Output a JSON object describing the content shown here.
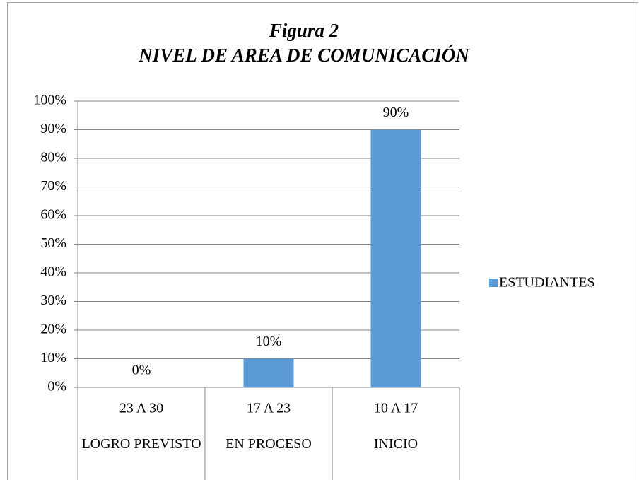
{
  "chart_data": {
    "type": "bar",
    "title": "Figura 2",
    "subtitle": "NIVEL DE AREA DE COMUNICACIÓN",
    "categories": [
      "23 A 30",
      "17 A 23",
      "10 A 17"
    ],
    "category_groups": [
      "LOGRO PREVISTO",
      "EN PROCESO",
      "INICIO"
    ],
    "series": [
      {
        "name": "ESTUDIANTES",
        "color": "#5b9bd5",
        "values": [
          0,
          10,
          90
        ],
        "value_labels": [
          "0%",
          "10%",
          "90%"
        ]
      }
    ],
    "ylim": [
      0,
      100
    ],
    "yticks": [
      {
        "value": 0,
        "label": "0%"
      },
      {
        "value": 10,
        "label": "10%"
      },
      {
        "value": 20,
        "label": "20%"
      },
      {
        "value": 30,
        "label": "30%"
      },
      {
        "value": 40,
        "label": "40%"
      },
      {
        "value": 50,
        "label": "50%"
      },
      {
        "value": 60,
        "label": "60%"
      },
      {
        "value": 70,
        "label": "70%"
      },
      {
        "value": 80,
        "label": "80%"
      },
      {
        "value": 90,
        "label": "90%"
      },
      {
        "value": 100,
        "label": "100%"
      }
    ],
    "grid": true,
    "legend": "right"
  }
}
